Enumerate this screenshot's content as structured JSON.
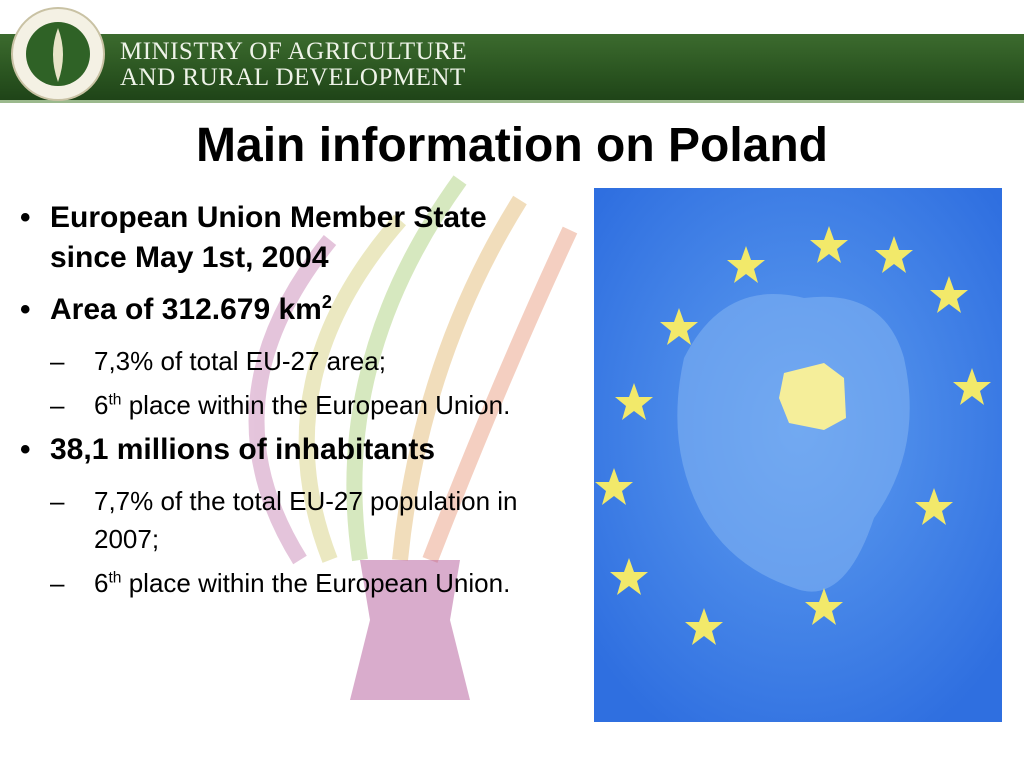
{
  "header": {
    "lines": [
      "MINISTRY OF AGRICULTURE",
      "AND RURAL DEVELOPMENT"
    ]
  },
  "title": "Main information on Poland",
  "bullets": [
    {
      "text": "European Union Member State since May 1st, 2004"
    },
    {
      "text": "Area of 312.679 km",
      "sup": "2",
      "items": [
        {
          "text": "7,3% of total EU-27 area;"
        },
        {
          "text": "6",
          "sup": "th",
          "tail": " place within the European Union."
        }
      ]
    },
    {
      "text": "38,1 millions of inhabitants",
      "items": [
        {
          "text": "7,7% of the total EU-27 population in 2007;"
        },
        {
          "text": "6",
          "sup": "th",
          "tail": " place within the European Union."
        }
      ]
    }
  ]
}
